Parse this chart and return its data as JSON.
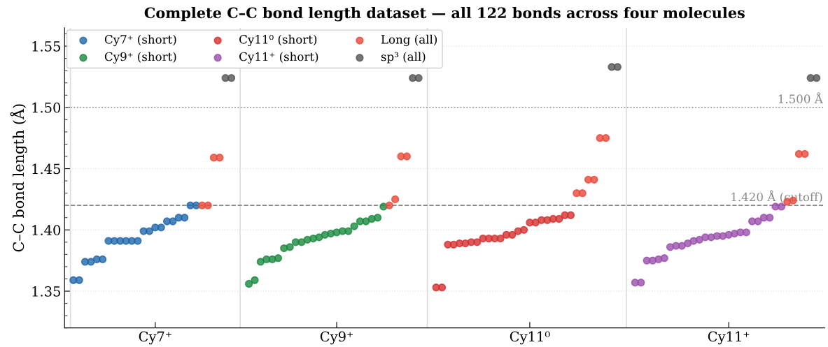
{
  "chart_data": {
    "type": "scatter",
    "title": "Complete C–C bond length dataset — all 122 bonds across four molecules",
    "ylabel": "C–C bond length (Å)",
    "categories": [
      null,
      null,
      null,
      null,
      null,
      null,
      null,
      null,
      null,
      null,
      null,
      null,
      null,
      null,
      "Cy7⁺",
      null,
      null,
      null,
      null,
      null,
      null,
      null,
      null,
      null,
      null,
      null,
      null,
      null,
      null,
      null,
      null,
      null,
      null,
      null,
      null,
      null,
      null,
      null,
      null,
      null,
      null,
      null,
      null,
      null,
      null,
      "Cy9⁺",
      null,
      null,
      null,
      null,
      null,
      null,
      null,
      null,
      null,
      null,
      null,
      null,
      null,
      null,
      null,
      null,
      null,
      null,
      null,
      null,
      null,
      null,
      null,
      null,
      null,
      null,
      null,
      null,
      null,
      null,
      null,
      null,
      "Cy11⁰",
      null,
      null,
      null,
      null,
      null,
      null,
      null,
      null,
      null,
      null,
      null,
      null,
      null,
      null,
      null,
      null,
      null,
      null,
      null,
      null,
      null,
      null,
      null,
      null,
      null,
      null,
      null,
      null,
      null,
      null,
      null,
      null,
      null,
      "Cy11⁺",
      null,
      null,
      null,
      null,
      null,
      null,
      null,
      null,
      null,
      null,
      null,
      null,
      null,
      null,
      null
    ],
    "ylim": [
      1.32,
      1.565
    ],
    "yticks": [
      {
        "value": 1.35,
        "label": "1.35"
      },
      {
        "value": 1.4,
        "label": "1.40"
      },
      {
        "value": 1.45,
        "label": "1.45"
      },
      {
        "value": 1.5,
        "label": "1.50"
      },
      {
        "value": 1.55,
        "label": "1.55"
      }
    ],
    "grid": "y",
    "legend": "top left",
    "marker": "circle",
    "ref_lines": [
      {
        "axis": "y",
        "value": 1.5,
        "label": "1.500 Å",
        "color": "#999999",
        "line_style": "dotted"
      },
      {
        "axis": "y",
        "value": 1.42,
        "label": "1.420 Å (cutoff)",
        "color": "#888888",
        "line_style": "dashed"
      }
    ],
    "series": [
      {
        "name": "Cy7⁺ (short)",
        "color": "#2166ac",
        "values": [
          1.359,
          1.359,
          1.374,
          1.374,
          1.376,
          1.376,
          1.391,
          1.391,
          1.391,
          1.391,
          1.391,
          1.391,
          1.399,
          1.399,
          1.402,
          1.402,
          1.407,
          1.407,
          1.41,
          1.41,
          1.42,
          1.42,
          null,
          null,
          null,
          null,
          null,
          null,
          null,
          null,
          null,
          null,
          null,
          null,
          null,
          null,
          null,
          null,
          null,
          null,
          null,
          null,
          null,
          null,
          null,
          null,
          null,
          null,
          null,
          null,
          null,
          null,
          null,
          null,
          null,
          null,
          null,
          null,
          null,
          null,
          null,
          null,
          null,
          null,
          null,
          null,
          null,
          null,
          null,
          null,
          null,
          null,
          null,
          null,
          null,
          null,
          null,
          null,
          null,
          null,
          null,
          null,
          null,
          null,
          null,
          null,
          null,
          null,
          null,
          null,
          null,
          null,
          null,
          null,
          null,
          null,
          null,
          null,
          null,
          null,
          null,
          null,
          null,
          null,
          null,
          null,
          null,
          null,
          null,
          null,
          null,
          null,
          null,
          null,
          null,
          null,
          null,
          null,
          null,
          null,
          null,
          null,
          null,
          null,
          null,
          null,
          null,
          null
        ]
      },
      {
        "name": "Cy9⁺ (short)",
        "color": "#1a8a3e",
        "values": [
          null,
          null,
          null,
          null,
          null,
          null,
          null,
          null,
          null,
          null,
          null,
          null,
          null,
          null,
          null,
          null,
          null,
          null,
          null,
          null,
          null,
          null,
          null,
          null,
          null,
          null,
          null,
          null,
          null,
          null,
          1.356,
          1.359,
          1.374,
          1.376,
          1.376,
          1.377,
          1.385,
          1.386,
          1.39,
          1.39,
          1.392,
          1.393,
          1.394,
          1.396,
          1.397,
          1.398,
          1.399,
          1.399,
          1.403,
          1.407,
          1.407,
          1.409,
          1.41,
          1.419,
          null,
          null,
          null,
          null,
          null,
          null,
          null,
          null,
          null,
          null,
          null,
          null,
          null,
          null,
          null,
          null,
          null,
          null,
          null,
          null,
          null,
          null,
          null,
          null,
          null,
          null,
          null,
          null,
          null,
          null,
          null,
          null,
          null,
          null,
          null,
          null,
          null,
          null,
          null,
          null,
          null,
          null,
          null,
          null,
          null,
          null,
          null,
          null,
          null,
          null,
          null,
          null,
          null,
          null,
          null,
          null,
          null,
          null,
          null,
          null,
          null,
          null,
          null,
          null,
          null,
          null,
          null,
          null,
          null,
          null,
          null,
          null,
          null,
          null
        ]
      },
      {
        "name": "Cy11⁰ (short)",
        "color": "#d62f2f",
        "values": [
          null,
          null,
          null,
          null,
          null,
          null,
          null,
          null,
          null,
          null,
          null,
          null,
          null,
          null,
          null,
          null,
          null,
          null,
          null,
          null,
          null,
          null,
          null,
          null,
          null,
          null,
          null,
          null,
          null,
          null,
          null,
          null,
          null,
          null,
          null,
          null,
          null,
          null,
          null,
          null,
          null,
          null,
          null,
          null,
          null,
          null,
          null,
          null,
          null,
          null,
          null,
          null,
          null,
          null,
          null,
          null,
          null,
          null,
          null,
          null,
          null,
          null,
          1.353,
          1.353,
          1.388,
          1.388,
          1.389,
          1.389,
          1.39,
          1.39,
          1.393,
          1.393,
          1.393,
          1.393,
          1.396,
          1.396,
          1.399,
          1.4,
          1.406,
          1.406,
          1.408,
          1.408,
          1.409,
          1.409,
          1.412,
          1.412,
          null,
          null,
          null,
          null,
          null,
          null,
          null,
          null,
          null,
          null,
          null,
          null,
          null,
          null,
          null,
          null,
          null,
          null,
          null,
          null,
          null,
          null,
          null,
          null,
          null,
          null,
          null,
          null,
          null,
          null,
          null,
          null,
          null,
          null,
          null,
          null,
          null,
          null,
          null,
          null,
          null,
          null
        ]
      },
      {
        "name": "Cy11⁺ (short)",
        "color": "#9b4fad",
        "values": [
          null,
          null,
          null,
          null,
          null,
          null,
          null,
          null,
          null,
          null,
          null,
          null,
          null,
          null,
          null,
          null,
          null,
          null,
          null,
          null,
          null,
          null,
          null,
          null,
          null,
          null,
          null,
          null,
          null,
          null,
          null,
          null,
          null,
          null,
          null,
          null,
          null,
          null,
          null,
          null,
          null,
          null,
          null,
          null,
          null,
          null,
          null,
          null,
          null,
          null,
          null,
          null,
          null,
          null,
          null,
          null,
          null,
          null,
          null,
          null,
          null,
          null,
          null,
          null,
          null,
          null,
          null,
          null,
          null,
          null,
          null,
          null,
          null,
          null,
          null,
          null,
          null,
          null,
          null,
          null,
          null,
          null,
          null,
          null,
          null,
          null,
          null,
          null,
          null,
          null,
          null,
          null,
          null,
          null,
          null,
          null,
          1.357,
          1.357,
          1.375,
          1.375,
          1.376,
          1.377,
          1.386,
          1.387,
          1.387,
          1.389,
          1.391,
          1.392,
          1.394,
          1.394,
          1.395,
          1.395,
          1.396,
          1.397,
          1.398,
          1.398,
          1.407,
          1.407,
          1.41,
          1.41,
          1.419,
          1.419,
          null,
          null,
          null,
          null,
          null,
          null
        ]
      },
      {
        "name": "Long (all)",
        "color": "#e8493a",
        "values": [
          null,
          null,
          null,
          null,
          null,
          null,
          null,
          null,
          null,
          null,
          null,
          null,
          null,
          null,
          null,
          null,
          null,
          null,
          null,
          null,
          null,
          null,
          1.42,
          1.42,
          1.459,
          1.459,
          null,
          null,
          null,
          null,
          null,
          null,
          null,
          null,
          null,
          null,
          null,
          null,
          null,
          null,
          null,
          null,
          null,
          null,
          null,
          null,
          null,
          null,
          null,
          null,
          null,
          null,
          null,
          null,
          1.42,
          1.425,
          1.46,
          1.46,
          null,
          null,
          null,
          null,
          null,
          null,
          null,
          null,
          null,
          null,
          null,
          null,
          null,
          null,
          null,
          null,
          null,
          null,
          null,
          null,
          null,
          null,
          null,
          null,
          null,
          null,
          null,
          null,
          1.43,
          1.43,
          1.441,
          1.441,
          1.475,
          1.475,
          null,
          null,
          null,
          null,
          null,
          null,
          null,
          null,
          null,
          null,
          null,
          null,
          null,
          null,
          null,
          null,
          null,
          null,
          null,
          null,
          null,
          null,
          null,
          null,
          null,
          null,
          null,
          null,
          null,
          null,
          1.423,
          1.424,
          1.462,
          1.462,
          null,
          null
        ]
      },
      {
        "name": "sp³ (all)",
        "color": "#555555",
        "values": [
          null,
          null,
          null,
          null,
          null,
          null,
          null,
          null,
          null,
          null,
          null,
          null,
          null,
          null,
          null,
          null,
          null,
          null,
          null,
          null,
          null,
          null,
          null,
          null,
          null,
          null,
          1.524,
          1.524,
          null,
          null,
          null,
          null,
          null,
          null,
          null,
          null,
          null,
          null,
          null,
          null,
          null,
          null,
          null,
          null,
          null,
          null,
          null,
          null,
          null,
          null,
          null,
          null,
          null,
          null,
          null,
          null,
          null,
          null,
          1.524,
          1.524,
          null,
          null,
          null,
          null,
          null,
          null,
          null,
          null,
          null,
          null,
          null,
          null,
          null,
          null,
          null,
          null,
          null,
          null,
          null,
          null,
          null,
          null,
          null,
          null,
          null,
          null,
          null,
          null,
          null,
          null,
          null,
          null,
          1.533,
          1.533,
          null,
          null,
          null,
          null,
          null,
          null,
          null,
          null,
          null,
          null,
          null,
          null,
          null,
          null,
          null,
          null,
          null,
          null,
          null,
          null,
          null,
          null,
          null,
          null,
          null,
          null,
          null,
          null,
          null,
          null,
          null,
          null,
          1.524,
          1.524
        ]
      }
    ]
  }
}
